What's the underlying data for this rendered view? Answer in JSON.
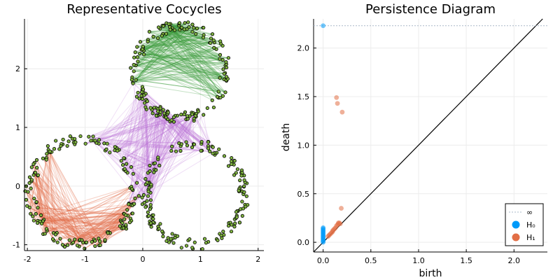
{
  "chart_data": [
    {
      "type": "scatter",
      "title": "Representative Cocycles",
      "xlim": [
        -2.05,
        2.1
      ],
      "ylim": [
        -1.1,
        2.85
      ],
      "xticks": [
        "-2",
        "-1",
        "0",
        "1",
        "2"
      ],
      "yticks": [
        "-1",
        "0",
        "1",
        "2"
      ],
      "grid": true,
      "point_color": "#7fb340",
      "point_edge": "#000000",
      "regions": [
        {
          "cx": 0.65,
          "cy": 1.95,
          "r": 0.78
        },
        {
          "cx": -1.05,
          "cy": -0.1,
          "r": 0.9
        },
        {
          "cx": 0.9,
          "cy": -0.15,
          "r": 0.85
        }
      ],
      "cocycle_colors": [
        "#3b9b3b",
        "#e26a45",
        "#b971d8"
      ]
    },
    {
      "type": "scatter",
      "title": "Persistence Diagram",
      "xlabel": "birth",
      "ylabel": "death",
      "xlim": [
        -0.1,
        2.35
      ],
      "ylim": [
        -0.1,
        2.3
      ],
      "xticks": [
        "0.0",
        "0.5",
        "1.0",
        "1.5",
        "2.0"
      ],
      "yticks": [
        "0.0",
        "0.5",
        "1.0",
        "1.5",
        "2.0"
      ],
      "grid": true,
      "infinity_line_y": 2.23,
      "legend_position": "bottom-right",
      "legend": [
        {
          "label": "∞",
          "color": "#aab8c8"
        },
        {
          "label": "H₀",
          "color": "#009af9"
        },
        {
          "label": "H₁",
          "color": "#e26f46"
        }
      ],
      "series": [
        {
          "name": "H₀",
          "color": "#009af9",
          "points": [
            [
              0.0,
              2.23
            ],
            [
              0.0,
              0.0
            ],
            [
              0.0,
              0.01
            ],
            [
              0.0,
              0.02
            ],
            [
              0.0,
              0.03
            ],
            [
              0.0,
              0.04
            ],
            [
              0.0,
              0.05
            ],
            [
              0.0,
              0.06
            ],
            [
              0.0,
              0.07
            ],
            [
              0.0,
              0.08
            ],
            [
              0.0,
              0.09
            ],
            [
              0.0,
              0.1
            ],
            [
              0.0,
              0.11
            ],
            [
              0.0,
              0.12
            ],
            [
              0.0,
              0.13
            ],
            [
              0.0,
              0.14
            ],
            [
              0.0,
              0.15
            ]
          ]
        },
        {
          "name": "H₁",
          "color": "#e26f46",
          "points": [
            [
              0.14,
              1.49
            ],
            [
              0.15,
              1.43
            ],
            [
              0.2,
              1.34
            ],
            [
              0.19,
              0.35
            ],
            [
              0.05,
              0.06
            ],
            [
              0.07,
              0.08
            ],
            [
              0.09,
              0.1
            ],
            [
              0.1,
              0.11
            ],
            [
              0.11,
              0.13
            ],
            [
              0.13,
              0.15
            ],
            [
              0.14,
              0.17
            ],
            [
              0.15,
              0.18
            ],
            [
              0.16,
              0.19
            ],
            [
              0.17,
              0.2
            ],
            [
              0.12,
              0.14
            ],
            [
              0.08,
              0.09
            ],
            [
              0.06,
              0.07
            ],
            [
              0.18,
              0.19
            ],
            [
              0.16,
              0.2
            ],
            [
              0.1,
              0.12
            ]
          ]
        }
      ]
    }
  ]
}
